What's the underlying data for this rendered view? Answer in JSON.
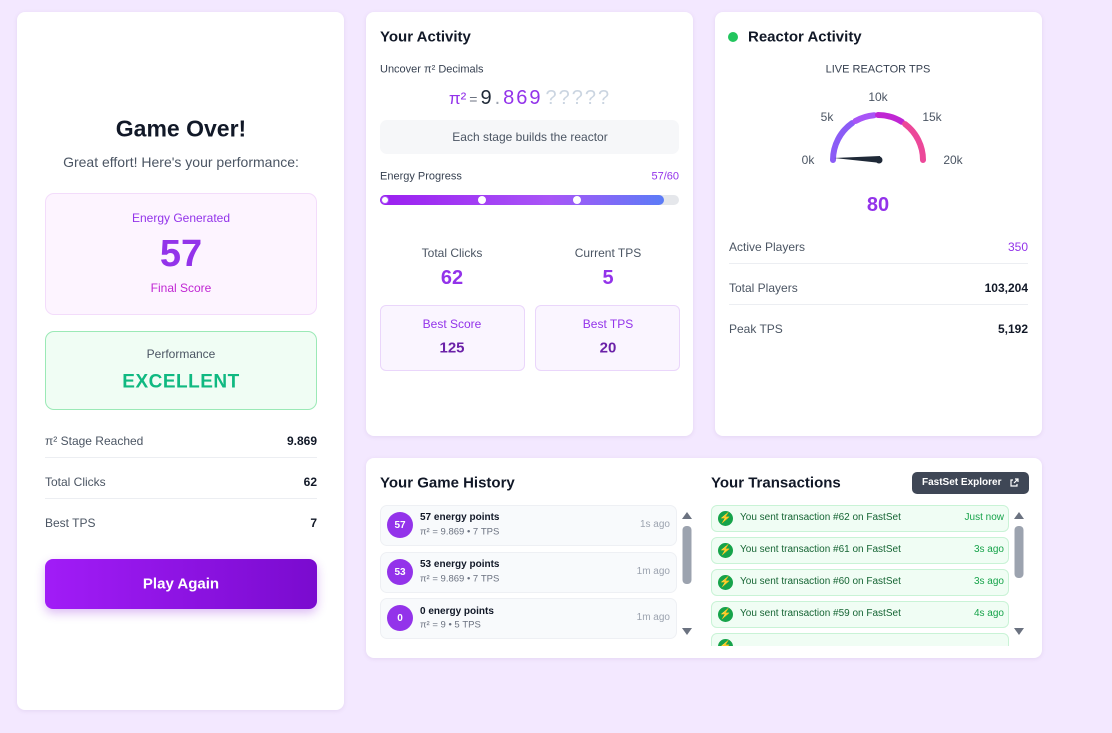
{
  "game_over": {
    "title": "Game Over!",
    "subtitle": "Great effort! Here's your performance:",
    "energy": {
      "label": "Energy Generated",
      "value": 57,
      "caption": "Final Score"
    },
    "performance": {
      "label": "Performance",
      "value": "EXCELLENT"
    },
    "stats": [
      {
        "label": "π² Stage Reached",
        "value": 9.869
      },
      {
        "label": "Total Clicks",
        "value": 62
      },
      {
        "label": "Best TPS",
        "value": 7
      }
    ],
    "button": "Play Again"
  },
  "activity": {
    "title": "Your Activity",
    "pi_label": "Uncover π² Decimals",
    "pi": {
      "symbol": "π²",
      "equals": "=",
      "integer": "9",
      "dot": ".",
      "decimals": "869",
      "hidden": "?????"
    },
    "hint": "Each stage builds the reactor",
    "progress": {
      "label": "Energy Progress",
      "value_label": "57/60"
    },
    "stats": [
      {
        "label": "Total Clicks",
        "value": 62
      },
      {
        "label": "Current TPS",
        "value": 5
      }
    ],
    "best": [
      {
        "label": "Best Score",
        "value": 125
      },
      {
        "label": "Best TPS",
        "value": 20
      }
    ]
  },
  "reactor": {
    "title": "Reactor Activity",
    "gauge_label": "LIVE REACTOR TPS",
    "gauge_ticks": [
      "0k",
      "5k",
      "10k",
      "15k",
      "20k"
    ],
    "value": 80,
    "rows": [
      {
        "label": "Active Players",
        "value": 350
      },
      {
        "label": "Total Players",
        "value": "103,204"
      },
      {
        "label": "Peak TPS",
        "value": "5,192"
      }
    ]
  },
  "history": {
    "title": "Your Game History",
    "items": [
      {
        "badge": 57,
        "title": "57 energy points",
        "detail": "π² = 9.869 • 7 TPS",
        "time": "1s ago"
      },
      {
        "badge": 53,
        "title": "53 energy points",
        "detail": "π² = 9.869 • 7 TPS",
        "time": "1m ago"
      },
      {
        "badge": 0,
        "title": "0 energy points",
        "detail": "π² = 9 • 5 TPS",
        "time": "1m ago"
      }
    ]
  },
  "transactions": {
    "title": "Your Transactions",
    "button": "FastSet Explorer",
    "items": [
      {
        "text": "You sent transaction #62 on FastSet",
        "time": "Just now"
      },
      {
        "text": "You sent transaction #61 on FastSet",
        "time": "3s ago"
      },
      {
        "text": "You sent transaction #60 on FastSet",
        "time": "3s ago"
      },
      {
        "text": "You sent transaction #59 on FastSet",
        "time": "4s ago"
      }
    ]
  }
}
